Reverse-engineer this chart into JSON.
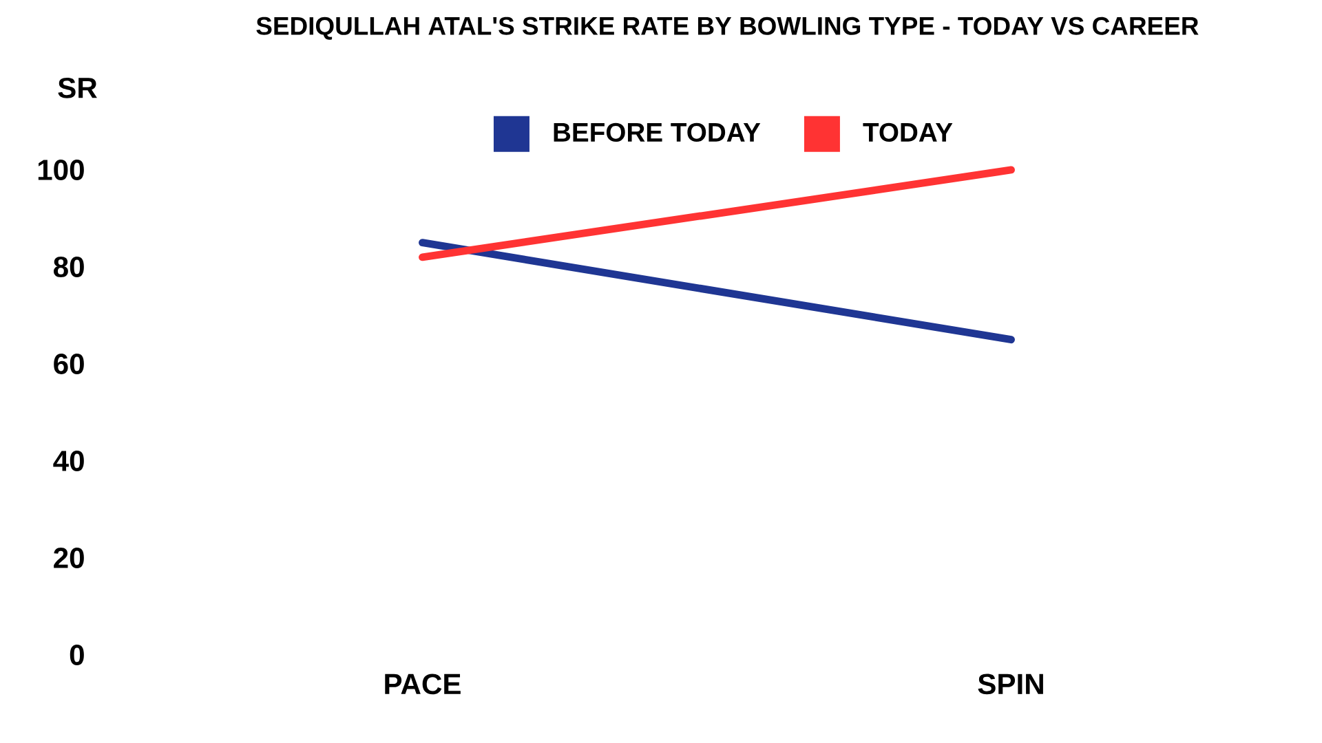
{
  "chart_data": {
    "type": "line",
    "title": "SEDIQULLAH ATAL'S STRIKE RATE BY BOWLING TYPE - TODAY VS CAREER",
    "ylabel": "SR",
    "categories": [
      "PACE",
      "SPIN"
    ],
    "series": [
      {
        "name": "BEFORE TODAY",
        "color": "#1f3693",
        "values": [
          85,
          65
        ]
      },
      {
        "name": "TODAY",
        "color": "#ff3333",
        "values": [
          82,
          100
        ]
      }
    ],
    "ylim": [
      0,
      100
    ],
    "yticks": [
      0,
      20,
      40,
      60,
      80,
      100
    ],
    "legend": "top",
    "marker": "none",
    "line_style": "solid"
  }
}
